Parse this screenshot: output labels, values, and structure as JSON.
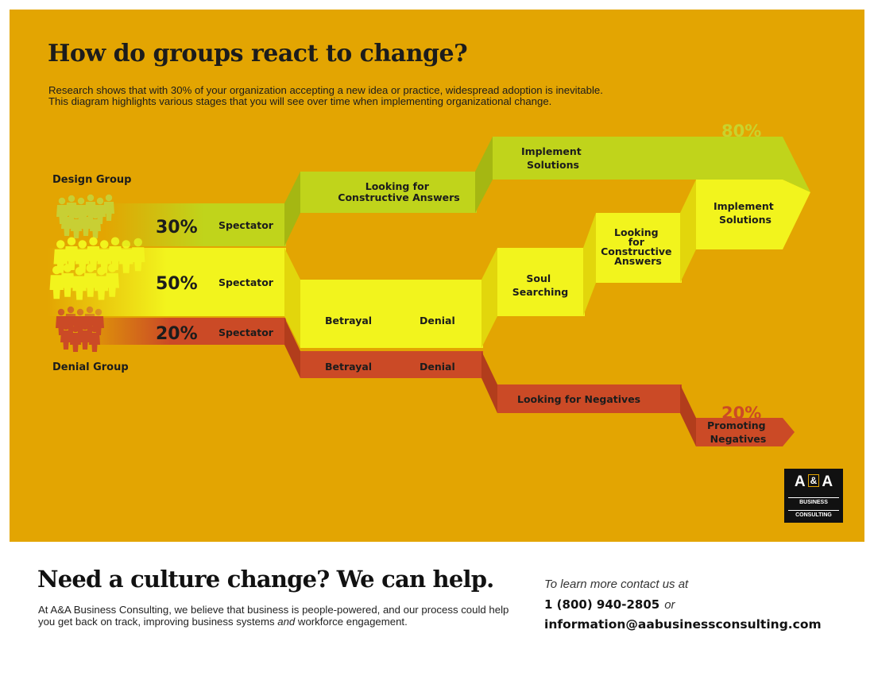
{
  "header": {
    "title": "How do groups react to change?",
    "intro": "Research shows that with 30% of your organization accepting a new idea or practice, widespread adoption is inevitable. This diagram highlights various stages that you will see over time when implementing organizational change."
  },
  "groups": {
    "design_label": "Design Group",
    "denial_label": "Denial Group"
  },
  "rows": [
    {
      "percent": "30%",
      "stage": "Spectator"
    },
    {
      "percent": "50%",
      "stage": "Spectator"
    },
    {
      "percent": "20%",
      "stage": "Spectator"
    }
  ],
  "design_path": {
    "step1": "Looking for Constructive Answers",
    "step2": "Implement Solutions",
    "result": "80%"
  },
  "majority_path": {
    "betrayal": "Betrayal",
    "denial": "Denial",
    "soul_searching": "Soul Searching",
    "looking": "Looking for Constructive Answers",
    "implement": "Implement Solutions"
  },
  "denial_path": {
    "betrayal": "Betrayal",
    "denial": "Denial",
    "negatives": "Looking for Negatives",
    "promoting": "Promoting Negatives",
    "result": "20%"
  },
  "colors": {
    "background": "#e3a502",
    "green": "#c0d41b",
    "yellow": "#f2f41d",
    "red": "#cb4a26",
    "dark_text": "#1c1c1c"
  },
  "footer": {
    "headline": "Need a culture change? We can help.",
    "body_pre": "At A&A Business Consulting, we believe that business is people-powered, and our process could help you get back on track, improving business systems ",
    "body_em": "and",
    "body_post": " workforce engagement.",
    "contact_prompt": "To learn more contact us at",
    "phone": "1 (800) 940-2805",
    "or": "or",
    "email": "information@aabusinessconsulting.com"
  },
  "logo": {
    "letter_a": "A",
    "ampersand": "&",
    "letter_b": "A",
    "line1": "BUSINESS",
    "line2": "CONSULTING"
  }
}
